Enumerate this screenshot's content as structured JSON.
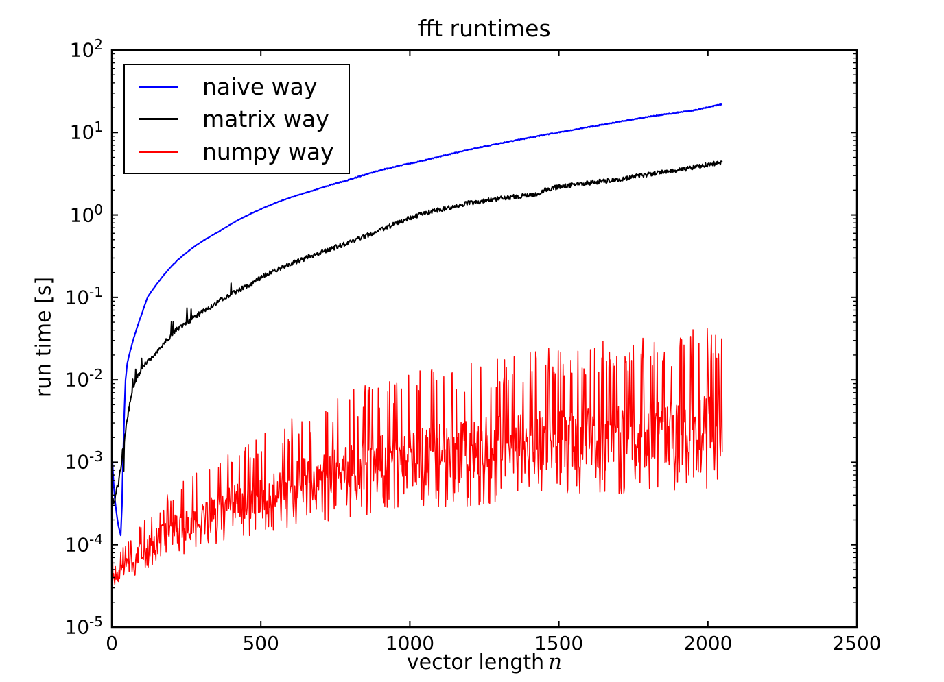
{
  "figure": {
    "title": "fft runtimes",
    "background_color": "#ffffff",
    "text_color": "#000000"
  },
  "axes": {
    "xlabel": {
      "text": "vector length",
      "math_symbol": "n"
    },
    "ylabel": "run time [s]",
    "x_ticks": [
      0,
      500,
      1000,
      1500,
      2000,
      2500
    ],
    "y_tick_base": "10",
    "y_tick_exponents": [
      2,
      1,
      0,
      -1,
      -2,
      -3,
      -4,
      -5
    ],
    "xlim": [
      0,
      2500
    ],
    "ylim": [
      1e-05,
      100
    ],
    "yscale": "log",
    "spine_color": "#000000"
  },
  "legend": {
    "position": "upper left",
    "items": [
      {
        "label": "naive way",
        "color": "#0000ff"
      },
      {
        "label": "matrix way",
        "color": "#000000"
      },
      {
        "label": "numpy way",
        "color": "#ff0000"
      }
    ]
  },
  "chart_data": {
    "type": "line",
    "title": "fft runtimes",
    "xlabel": "vector length n",
    "ylabel": "run time [s]",
    "xlim": [
      0,
      2500
    ],
    "ylim": [
      1e-05,
      100
    ],
    "yscale": "log",
    "grid": false,
    "legend_position": "upper left",
    "n_range": [
      2,
      2048
    ],
    "n_step": 2,
    "series": [
      {
        "name": "naive way",
        "color": "#0000ff",
        "style": "smooth",
        "line_width": 2.2,
        "jitter_decades": 0.006,
        "anchors_n_seconds": [
          [
            2,
            0.00105
          ],
          [
            4,
            0.00075
          ],
          [
            8,
            0.00045
          ],
          [
            14,
            0.00027
          ],
          [
            22,
            0.00017
          ],
          [
            30,
            0.00013
          ],
          [
            34,
            0.0003
          ],
          [
            38,
            0.0012
          ],
          [
            42,
            0.004
          ],
          [
            46,
            0.01
          ],
          [
            52,
            0.016
          ],
          [
            64,
            0.024
          ],
          [
            80,
            0.038
          ],
          [
            100,
            0.062
          ],
          [
            120,
            0.1
          ],
          [
            160,
            0.16
          ],
          [
            215,
            0.27
          ],
          [
            280,
            0.42
          ],
          [
            360,
            0.63
          ],
          [
            420,
            0.85
          ],
          [
            470,
            1.05
          ],
          [
            560,
            1.45
          ],
          [
            680,
            2.0
          ],
          [
            800,
            2.7
          ],
          [
            915,
            3.6
          ],
          [
            1050,
            4.6
          ],
          [
            1200,
            6.2
          ],
          [
            1400,
            8.6
          ],
          [
            1600,
            11.6
          ],
          [
            1800,
            15.5
          ],
          [
            1950,
            18.5
          ],
          [
            2048,
            22.0
          ]
        ]
      },
      {
        "name": "matrix way",
        "color": "#000000",
        "style": "noisy",
        "line_width": 2.0,
        "jitter_decades": 0.028,
        "start_noise_below_n": 60,
        "start_noise_boost": 2.2,
        "up_spike_prob": 0.04,
        "down_spike_prob_start": 0.12,
        "anchors_n_seconds": [
          [
            2,
            0.00035
          ],
          [
            6,
            0.00031
          ],
          [
            10,
            0.00034
          ],
          [
            14,
            0.00039
          ],
          [
            20,
            0.0005
          ],
          [
            28,
            0.0008
          ],
          [
            38,
            0.0015
          ],
          [
            50,
            0.003
          ],
          [
            62,
            0.0055
          ],
          [
            74,
            0.0084
          ],
          [
            90,
            0.0115
          ],
          [
            110,
            0.0155
          ],
          [
            143,
            0.02
          ],
          [
            180,
            0.029
          ],
          [
            212,
            0.039
          ],
          [
            260,
            0.052
          ],
          [
            320,
            0.072
          ],
          [
            380,
            0.1
          ],
          [
            460,
            0.14
          ],
          [
            530,
            0.2
          ],
          [
            620,
            0.27
          ],
          [
            700,
            0.35
          ],
          [
            780,
            0.44
          ],
          [
            850,
            0.55
          ],
          [
            930,
            0.72
          ],
          [
            1000,
            0.92
          ],
          [
            1050,
            1.05
          ],
          [
            1200,
            1.4
          ],
          [
            1430,
            1.8
          ],
          [
            1455,
            2.05
          ],
          [
            1600,
            2.45
          ],
          [
            1700,
            2.7
          ],
          [
            1800,
            3.1
          ],
          [
            1900,
            3.5
          ],
          [
            2048,
            4.35
          ]
        ]
      },
      {
        "name": "numpy way",
        "color": "#ff0000",
        "style": "spiky-band",
        "line_width": 1.5,
        "tall_spike_prob_base": 0.12,
        "tall_spike_prob_slope": 0.1,
        "dip_prob": 0.13,
        "envelope_n_lo_hi": [
          [
            2,
            9e-05,
            0.000135
          ],
          [
            4,
            3.2e-05,
            0.00012
          ],
          [
            8,
            3.1e-05,
            5e-05
          ],
          [
            16,
            3.2e-05,
            6.5e-05
          ],
          [
            32,
            3.4e-05,
            9e-05
          ],
          [
            64,
            3.9e-05,
            0.00013
          ],
          [
            100,
            4.5e-05,
            0.00019
          ],
          [
            150,
            5.5e-05,
            0.00032
          ],
          [
            200,
            6.5e-05,
            0.00048
          ],
          [
            300,
            8e-05,
            0.0009
          ],
          [
            400,
            0.0001,
            0.0015
          ],
          [
            500,
            0.00012,
            0.0022
          ],
          [
            650,
            0.00016,
            0.0042
          ],
          [
            800,
            0.0002,
            0.0075
          ],
          [
            1000,
            0.00024,
            0.012
          ],
          [
            1250,
            0.00028,
            0.019
          ],
          [
            1500,
            0.00032,
            0.026
          ],
          [
            1750,
            0.00036,
            0.034
          ],
          [
            2048,
            0.00043,
            0.045
          ]
        ]
      }
    ]
  }
}
